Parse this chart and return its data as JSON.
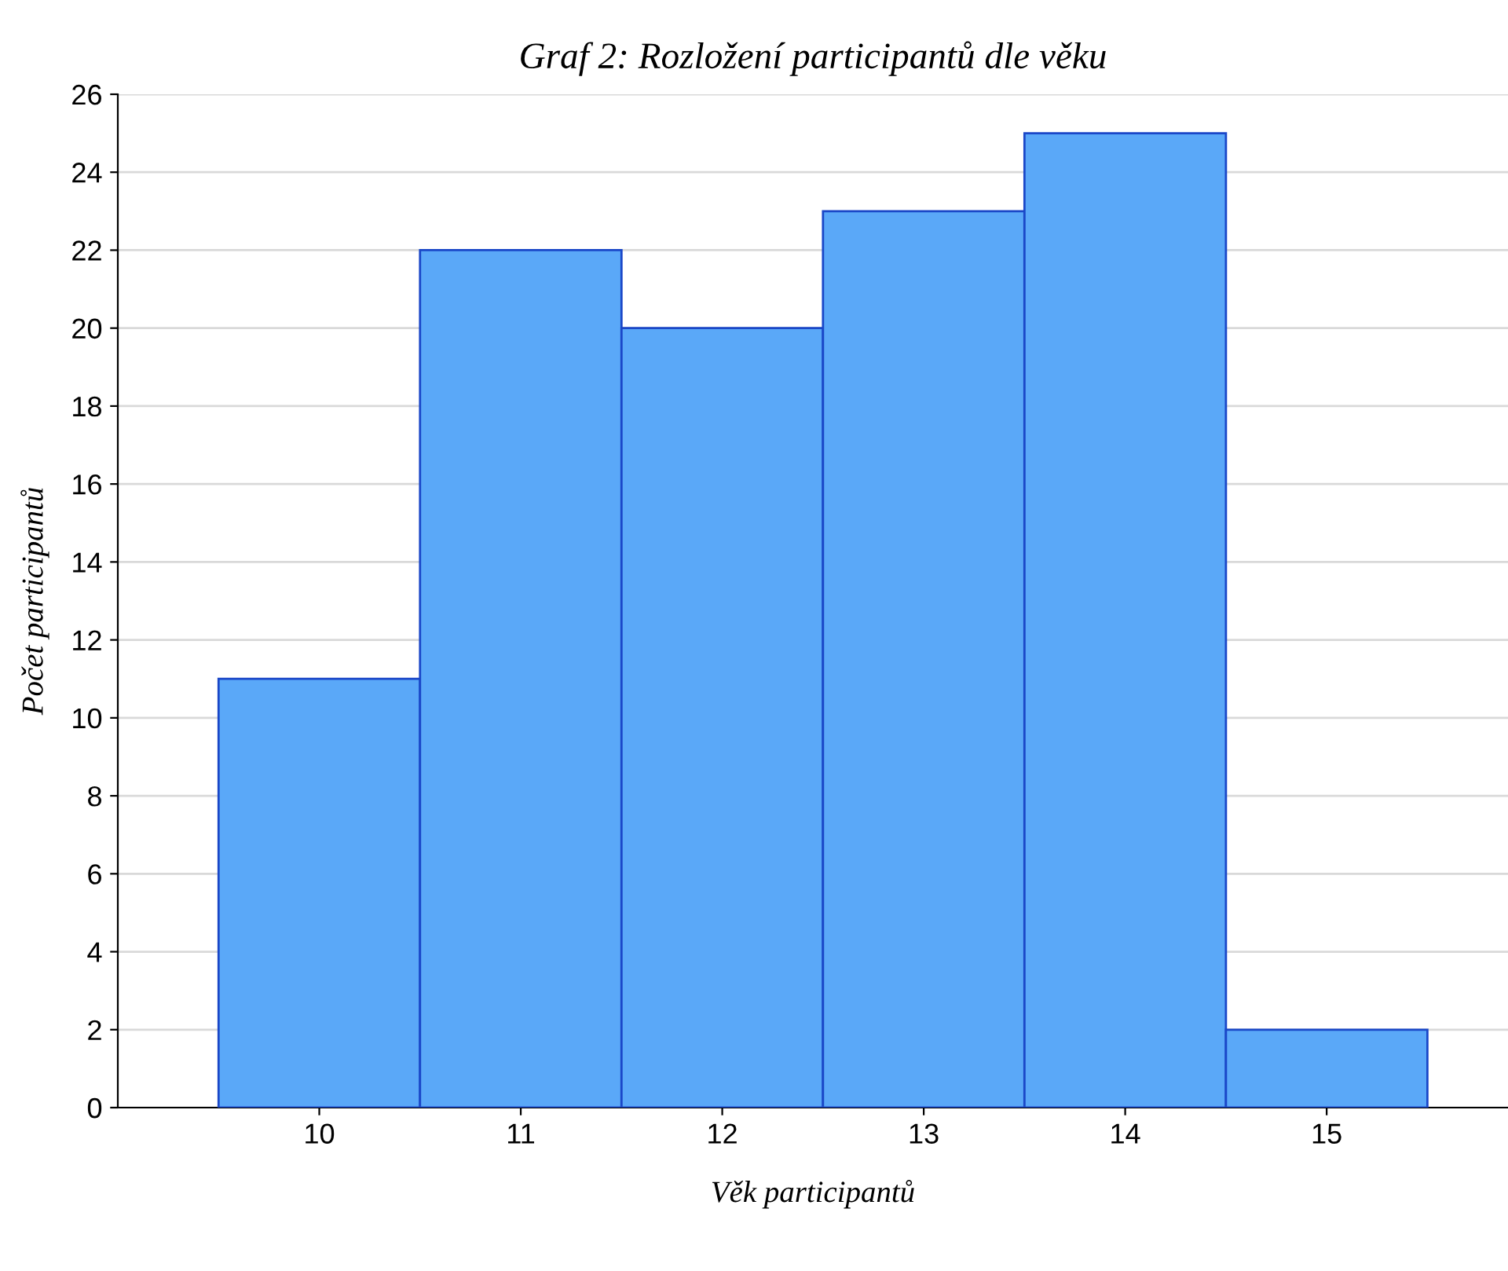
{
  "chart_data": {
    "type": "histogram",
    "title": "Graf 2: Rozložení participantů dle věku",
    "xlabel": "Věk participantů",
    "ylabel": "Počet participantů",
    "bins": [
      9.5,
      10.5,
      11.5,
      12.5,
      13.5,
      14.5,
      15.5
    ],
    "values": [
      11,
      22,
      20,
      23,
      25,
      2
    ],
    "color": "#5aa8f8",
    "xlim": [
      9.0,
      15.9
    ],
    "xticks": [
      10,
      11,
      12,
      13,
      14,
      15
    ],
    "ylim": [
      0,
      26
    ],
    "yticks": [
      0,
      2,
      4,
      6,
      8,
      10,
      12,
      14,
      16,
      18,
      20,
      22,
      24,
      26
    ],
    "grid": "y"
  }
}
